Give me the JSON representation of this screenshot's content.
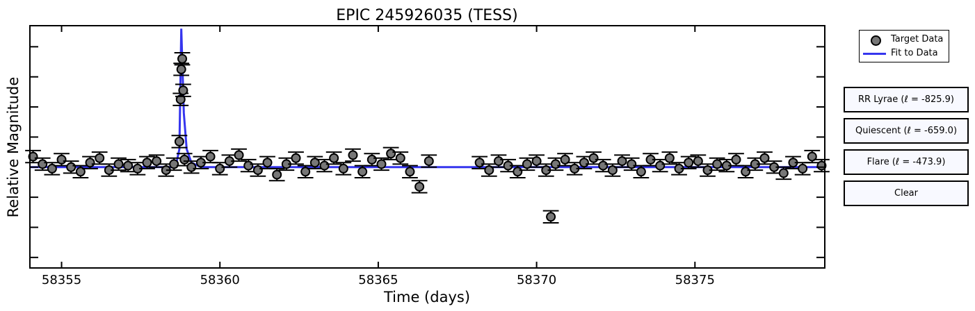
{
  "chart_data": {
    "type": "scatter",
    "title": "EPIC 245926035 (TESS)",
    "xlabel": "Time (days)",
    "ylabel": "Relative Magnitude",
    "xlim": [
      58354.0,
      58379.1
    ],
    "ylim": [
      -0.35,
      7.7
    ],
    "y_tick_values": [
      0,
      1,
      2,
      3,
      4,
      5,
      6,
      7
    ],
    "y_tick_labels_shown": false,
    "x_ticks": [
      58355,
      58360,
      58365,
      58370,
      58375
    ],
    "x_tick_labels": [
      "58355",
      "58360",
      "58365",
      "58370",
      "58375"
    ],
    "marker_color": "#777777",
    "marker_edge_color": "#000000",
    "fit_color": "#3535ee",
    "grid": false,
    "legend_position": "outside-top-right",
    "error_bar_half_width": 0.25,
    "series": [
      {
        "name": "Target Data",
        "kind": "points",
        "x": [
          58354.1,
          58354.4,
          58354.7,
          58355.0,
          58355.3,
          58355.6,
          58355.9,
          58356.2,
          58356.5,
          58356.8,
          58357.1,
          58357.4,
          58357.7,
          58358.0,
          58358.3,
          58358.55,
          58358.72,
          58358.76,
          58358.78,
          58358.81,
          58358.84,
          58358.88,
          58359.1,
          58359.4,
          58359.7,
          58360.0,
          58360.3,
          58360.6,
          58360.9,
          58361.2,
          58361.5,
          58361.8,
          58362.1,
          58362.4,
          58362.7,
          58363.0,
          58363.3,
          58363.6,
          58363.9,
          58364.2,
          58364.5,
          58364.8,
          58365.1,
          58365.4,
          58365.7,
          58366.0,
          58366.3,
          58366.6,
          58368.2,
          58368.5,
          58368.8,
          58369.1,
          58369.4,
          58369.7,
          58370.0,
          58370.3,
          58370.45,
          58370.6,
          58370.9,
          58371.2,
          58371.5,
          58371.8,
          58372.1,
          58372.4,
          58372.7,
          58373.0,
          58373.3,
          58373.6,
          58373.9,
          58374.2,
          58374.5,
          58374.8,
          58375.1,
          58375.4,
          58375.7,
          58376.0,
          58376.3,
          58376.6,
          58376.9,
          58377.2,
          58377.5,
          58377.8,
          58378.1,
          58378.4,
          58378.7,
          58379.0
        ],
        "y": [
          3.35,
          3.1,
          2.95,
          3.25,
          3.0,
          2.85,
          3.15,
          3.3,
          2.9,
          3.1,
          3.05,
          2.95,
          3.15,
          3.2,
          2.9,
          3.1,
          3.85,
          5.25,
          6.25,
          6.6,
          5.55,
          3.25,
          3.0,
          3.15,
          3.35,
          2.95,
          3.2,
          3.4,
          3.05,
          2.9,
          3.15,
          2.75,
          3.1,
          3.3,
          2.85,
          3.15,
          3.05,
          3.3,
          2.95,
          3.4,
          2.85,
          3.25,
          3.1,
          3.45,
          3.3,
          2.85,
          2.35,
          3.2,
          3.15,
          2.9,
          3.2,
          3.05,
          2.85,
          3.1,
          3.2,
          2.9,
          1.35,
          3.1,
          3.25,
          2.95,
          3.15,
          3.3,
          3.05,
          2.9,
          3.2,
          3.1,
          2.85,
          3.25,
          3.05,
          3.3,
          2.95,
          3.15,
          3.2,
          2.9,
          3.1,
          3.05,
          3.25,
          2.85,
          3.1,
          3.3,
          3.0,
          2.8,
          3.15,
          2.95,
          3.35,
          3.05
        ],
        "y_err": 0.2
      },
      {
        "name": "Fit to Data",
        "kind": "line",
        "x": [
          58354.0,
          58358.6,
          58358.72,
          58358.78,
          58358.86,
          58358.95,
          58359.1,
          58359.4,
          58366.7,
          58368.0,
          58379.1
        ],
        "y": [
          3.0,
          3.0,
          3.6,
          7.6,
          4.8,
          3.6,
          3.15,
          3.0,
          3.0,
          3.0,
          3.0
        ]
      }
    ]
  },
  "legend": {
    "items": [
      {
        "label": "Target Data",
        "kind": "marker"
      },
      {
        "label": "Fit to Data",
        "kind": "line"
      }
    ]
  },
  "buttons": {
    "rr_lyrae": "RR Lyrae (ℓ = -825.9)",
    "quiescent": "Quiescent (ℓ = -659.0)",
    "flare": "Flare (ℓ = -473.9)",
    "clear": "Clear"
  }
}
